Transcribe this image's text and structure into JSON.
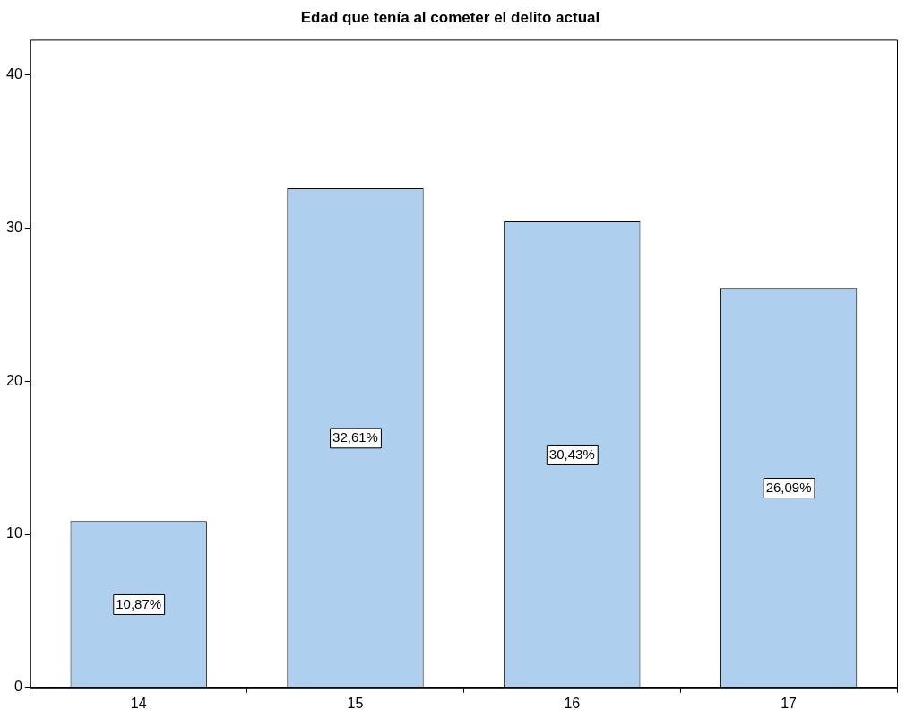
{
  "chart_data": {
    "type": "bar",
    "title": "Edad que tenía al cometer el delito actual",
    "categories": [
      "14",
      "15",
      "16",
      "17"
    ],
    "values": [
      10.87,
      32.61,
      30.43,
      26.09
    ],
    "value_labels": [
      "10,87%",
      "32,61%",
      "30,43%",
      "26,09%"
    ],
    "color": "#aecfed",
    "ylim": [
      0,
      42.3
    ],
    "yticks": [
      0,
      10,
      20,
      30,
      40
    ],
    "grid": false,
    "legend": false
  }
}
